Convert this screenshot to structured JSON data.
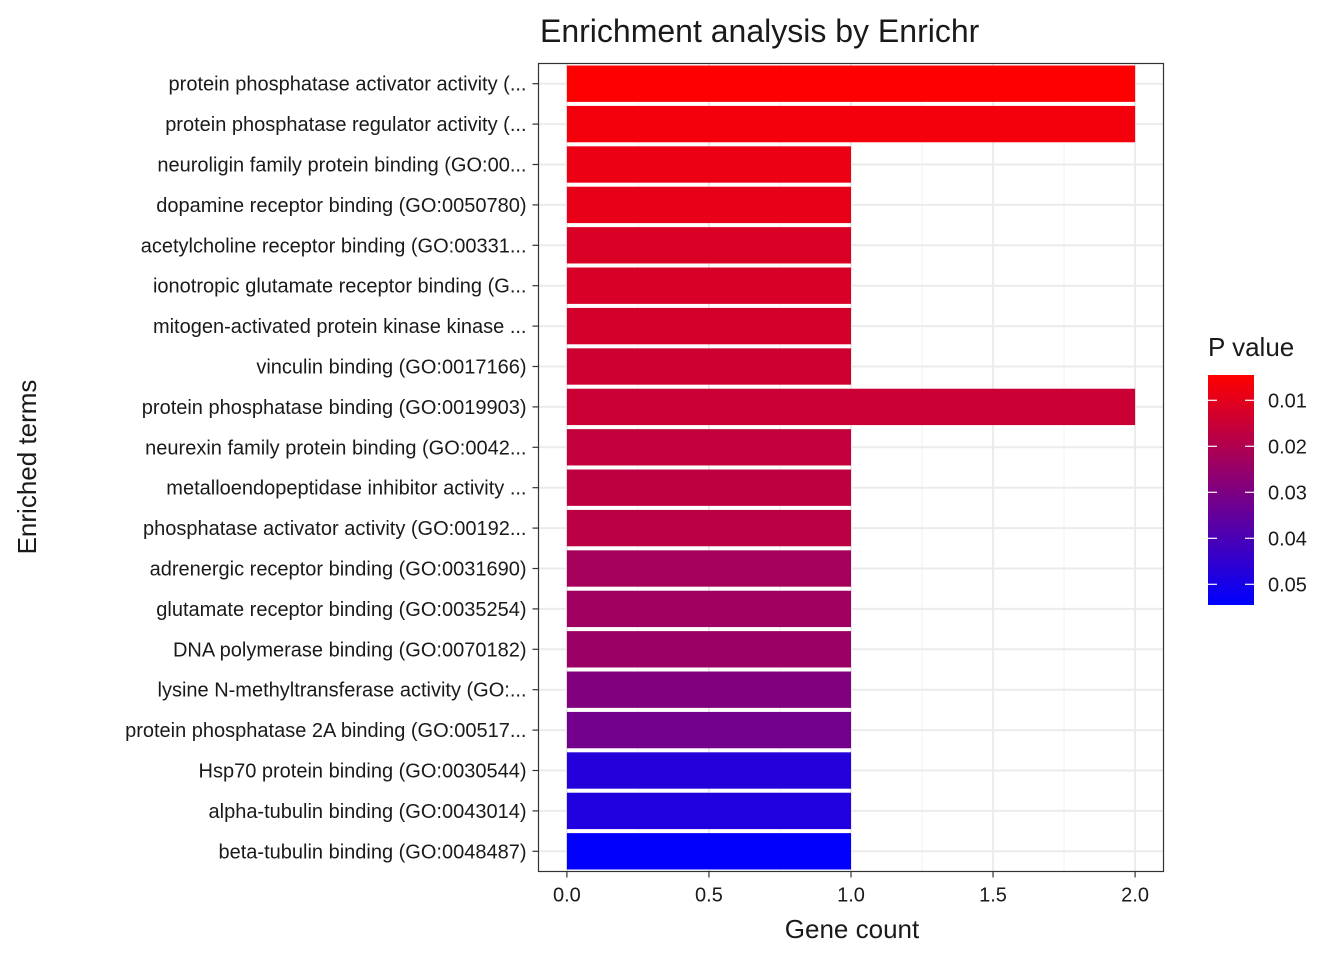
{
  "chart_data": {
    "type": "bar",
    "orientation": "horizontal",
    "title": "Enrichment analysis by Enrichr",
    "xlabel": "Gene count",
    "ylabel": "Enriched terms",
    "xlim": [
      -0.1,
      2.1
    ],
    "xticks": [
      0.0,
      0.5,
      1.0,
      1.5,
      2.0
    ],
    "xtick_labels": [
      "0.0",
      "0.5",
      "1.0",
      "1.5",
      "2.0"
    ],
    "grid": true,
    "categories": [
      "protein phosphatase activator activity (...",
      "protein phosphatase regulator activity (...",
      "neuroligin family protein binding (GO:00...",
      "dopamine receptor binding (GO:0050780)",
      "acetylcholine receptor binding (GO:00331...",
      "ionotropic glutamate receptor binding (G...",
      "mitogen-activated protein kinase kinase ...",
      "vinculin binding (GO:0017166)",
      "protein phosphatase binding (GO:0019903)",
      "neurexin family protein binding (GO:0042...",
      "metalloendopeptidase inhibitor activity ...",
      "phosphatase activator activity (GO:00192...",
      "adrenergic receptor binding (GO:0031690)",
      "glutamate receptor binding (GO:0035254)",
      "DNA polymerase binding (GO:0070182)",
      "lysine N-methyltransferase activity (GO:...",
      "protein phosphatase 2A binding (GO:00517...",
      "Hsp70 protein binding (GO:0030544)",
      "alpha-tubulin binding (GO:0043014)",
      "beta-tubulin binding (GO:0048487)"
    ],
    "values": [
      2,
      2,
      1,
      1,
      1,
      1,
      1,
      1,
      2,
      1,
      1,
      1,
      1,
      1,
      1,
      1,
      1,
      1,
      1,
      1
    ],
    "p_values": [
      0.0045,
      0.0068,
      0.0085,
      0.0092,
      0.0118,
      0.0122,
      0.0132,
      0.0142,
      0.0148,
      0.0162,
      0.0172,
      0.0178,
      0.0222,
      0.0232,
      0.0242,
      0.0292,
      0.0322,
      0.0472,
      0.0482,
      0.0542
    ],
    "legend": {
      "title": "P value",
      "position": "right",
      "range": [
        0.0045,
        0.0545
      ],
      "ticks": [
        0.01,
        0.02,
        0.03,
        0.04,
        0.05
      ],
      "tick_labels": [
        "0.01",
        "0.02",
        "0.03",
        "0.04",
        "0.05"
      ],
      "low_color": "#ff0000",
      "high_color": "#0000ff"
    }
  }
}
